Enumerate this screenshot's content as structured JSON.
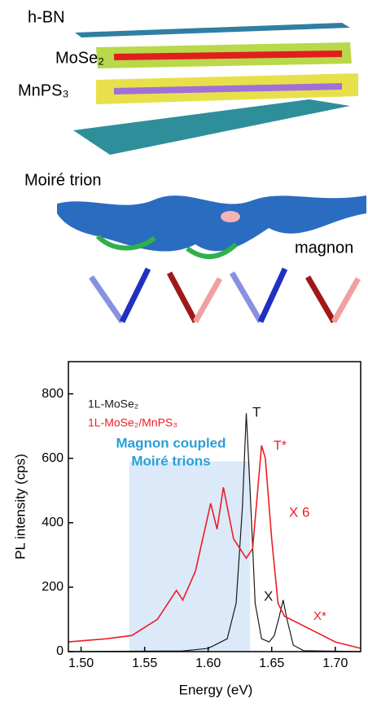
{
  "illustration": {
    "labels": [
      "h-BN",
      "MoSe₂",
      "MnPS₃",
      "Moiré trion",
      "magnon"
    ]
  },
  "chart_data": {
    "type": "line",
    "xlabel": "Energy (eV)",
    "ylabel": "PL intensity (cps)",
    "xlim": [
      1.49,
      1.72
    ],
    "ylim": [
      0,
      900
    ],
    "xticks": [
      {
        "value": 1.5,
        "label": "1.50"
      },
      1.55,
      {
        "value": 1.6,
        "label": "1.60"
      },
      1.65,
      {
        "value": 1.7,
        "label": "1.70"
      }
    ],
    "yticks": [
      0,
      200,
      400,
      600,
      800
    ],
    "highlight": {
      "xlim": [
        1.538,
        1.633
      ],
      "ylim": [
        0,
        590
      ],
      "color": "#dbe9f8"
    },
    "series": [
      {
        "name": "1L-MoSe₂",
        "color": "#1a1a1a",
        "x": [
          1.49,
          1.58,
          1.6,
          1.615,
          1.622,
          1.627,
          1.63,
          1.633,
          1.637,
          1.642,
          1.648,
          1.652,
          1.656,
          1.659,
          1.662,
          1.667,
          1.675,
          1.72
        ],
        "values": [
          0,
          2,
          10,
          40,
          150,
          450,
          740,
          500,
          150,
          40,
          30,
          50,
          110,
          160,
          100,
          20,
          3,
          0
        ]
      },
      {
        "name": "1L-MoSe₂/MnPS₃",
        "color": "#ee1c25",
        "x": [
          1.49,
          1.52,
          1.54,
          1.56,
          1.575,
          1.58,
          1.59,
          1.602,
          1.607,
          1.612,
          1.62,
          1.63,
          1.635,
          1.642,
          1.645,
          1.65,
          1.655,
          1.66,
          1.67,
          1.68,
          1.7,
          1.72
        ],
        "values": [
          30,
          40,
          50,
          100,
          190,
          160,
          250,
          460,
          380,
          510,
          350,
          290,
          320,
          640,
          600,
          350,
          150,
          110,
          90,
          70,
          30,
          10
        ]
      }
    ],
    "annotations": [
      "Magnon coupled",
      "Moiré trions",
      "T",
      "T*",
      "X 6",
      "X",
      "X*"
    ]
  }
}
